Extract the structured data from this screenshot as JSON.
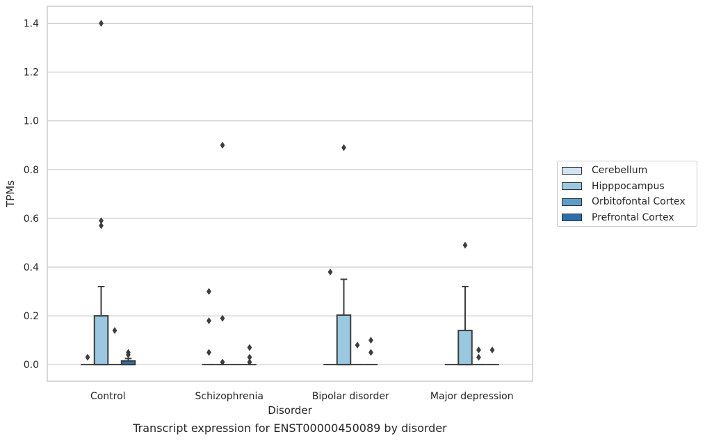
{
  "chart_data": {
    "type": "box",
    "caption": "Transcript expression for ENST00000450089 by disorder",
    "xlabel": "Disorder",
    "ylabel": "TPMs",
    "ylim": [
      -0.068,
      1.47
    ],
    "yticks": [
      0.0,
      0.2,
      0.4,
      0.6,
      0.8,
      1.0,
      1.2,
      1.4
    ],
    "grid": true,
    "legend_position": "right",
    "categories": [
      "Control",
      "Schizophrenia",
      "Bipolar disorder",
      "Major depression"
    ],
    "series": [
      {
        "name": "Cerebellum",
        "color": "#d2e3f3",
        "boxes": [
          {
            "q1": 0,
            "median": 0,
            "q3": 0,
            "whisker_low": 0,
            "whisker_high": 0,
            "outliers": [
              0.03
            ]
          },
          {
            "q1": 0,
            "median": 0,
            "q3": 0,
            "whisker_low": 0,
            "whisker_high": 0,
            "outliers": [
              0.3,
              0.18,
              0.05
            ]
          },
          {
            "q1": 0,
            "median": 0,
            "q3": 0,
            "whisker_low": 0,
            "whisker_high": 0,
            "outliers": [
              0.38
            ]
          },
          {
            "q1": 0,
            "median": 0,
            "q3": 0,
            "whisker_low": 0,
            "whisker_high": 0,
            "outliers": []
          }
        ]
      },
      {
        "name": "Hipppocampus",
        "color": "#9ac8e0",
        "boxes": [
          {
            "q1": 0,
            "median": 0,
            "q3": 0.2,
            "whisker_low": 0,
            "whisker_high": 0.32,
            "outliers": [
              1.4,
              0.59,
              0.57
            ]
          },
          {
            "q1": 0,
            "median": 0,
            "q3": 0,
            "whisker_low": 0,
            "whisker_high": 0,
            "outliers": [
              0.9,
              0.19,
              0.01
            ]
          },
          {
            "q1": 0,
            "median": 0,
            "q3": 0.203,
            "whisker_low": 0,
            "whisker_high": 0.35,
            "outliers": [
              0.89
            ]
          },
          {
            "q1": 0,
            "median": 0,
            "q3": 0.14,
            "whisker_low": 0,
            "whisker_high": 0.32,
            "outliers": [
              0.49
            ]
          }
        ]
      },
      {
        "name": "Orbitofontal Cortex",
        "color": "#5a9ec9",
        "boxes": [
          {
            "q1": 0,
            "median": 0,
            "q3": 0,
            "whisker_low": 0,
            "whisker_high": 0,
            "outliers": [
              0.14
            ]
          },
          {
            "q1": 0,
            "median": 0,
            "q3": 0,
            "whisker_low": 0,
            "whisker_high": 0,
            "outliers": []
          },
          {
            "q1": 0,
            "median": 0,
            "q3": 0,
            "whisker_low": 0,
            "whisker_high": 0,
            "outliers": [
              0.08
            ]
          },
          {
            "q1": 0,
            "median": 0,
            "q3": 0,
            "whisker_low": 0,
            "whisker_high": 0,
            "outliers": [
              0.06,
              0.03
            ]
          }
        ]
      },
      {
        "name": "Prefrontal Cortex",
        "color": "#2d6faa",
        "boxes": [
          {
            "q1": 0,
            "median": 0,
            "q3": 0.015,
            "whisker_low": 0,
            "whisker_high": 0.025,
            "outliers": [
              0.05,
              0.04
            ]
          },
          {
            "q1": 0,
            "median": 0,
            "q3": 0,
            "whisker_low": 0,
            "whisker_high": 0,
            "outliers": [
              0.07,
              0.03,
              0.01
            ]
          },
          {
            "q1": 0,
            "median": 0,
            "q3": 0,
            "whisker_low": 0,
            "whisker_high": 0,
            "outliers": [
              0.1,
              0.05
            ]
          },
          {
            "q1": 0,
            "median": 0,
            "q3": 0,
            "whisker_low": 0,
            "whisker_high": 0,
            "outliers": [
              0.06
            ]
          }
        ]
      }
    ]
  }
}
